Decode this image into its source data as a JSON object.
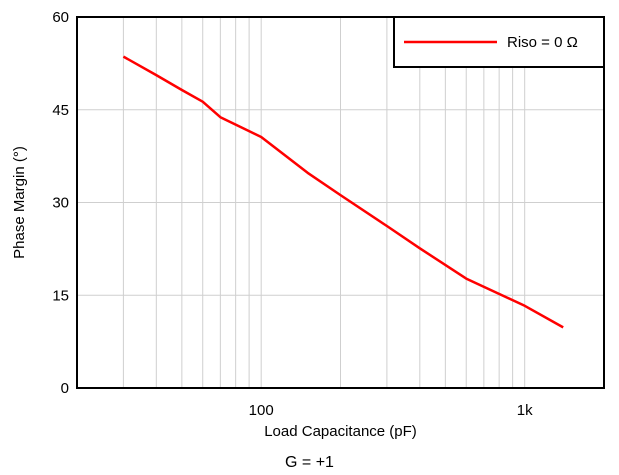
{
  "chart_data": {
    "type": "line",
    "xscale": "log",
    "xlabel": "Load Capacitance (pF)",
    "ylabel": "Phase Margin (°)",
    "xlim": [
      20,
      2000
    ],
    "ylim": [
      0,
      60
    ],
    "yticks": [
      0,
      15,
      30,
      45,
      60
    ],
    "xticks": [
      {
        "value": 100,
        "label": "100"
      },
      {
        "value": 1000,
        "label": "1k"
      }
    ],
    "grid": true,
    "legend": "top-right",
    "series": [
      {
        "name": "Riso = 0 Ω",
        "color": "#ff0000",
        "x": [
          30,
          40,
          50,
          60,
          70,
          100,
          150,
          200,
          300,
          400,
          600,
          1000,
          1400
        ],
        "y": [
          53.6,
          50.6,
          48.2,
          46.3,
          43.8,
          40.6,
          34.8,
          31.2,
          26.2,
          22.6,
          17.7,
          13.3,
          9.8
        ]
      }
    ]
  },
  "footnote": "G = +1"
}
